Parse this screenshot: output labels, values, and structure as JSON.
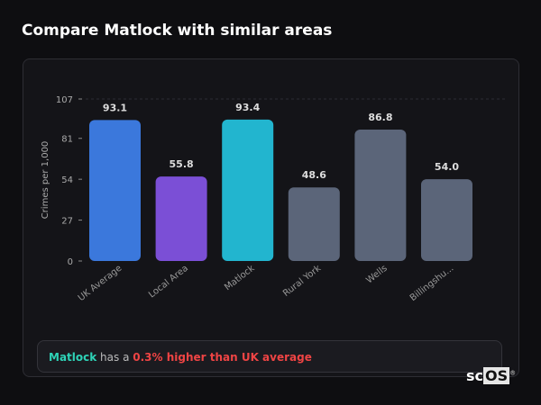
{
  "header": {
    "title": "Compare Matlock with similar areas"
  },
  "chart_data": {
    "type": "bar",
    "categories": [
      "UK Average",
      "Local Area",
      "Matlock",
      "Rural York",
      "Wells",
      "Billingshu..."
    ],
    "values": [
      93.1,
      55.8,
      93.4,
      48.6,
      86.8,
      54.0
    ],
    "data_labels": [
      "93.1",
      "55.8",
      "93.4",
      "48.6",
      "86.8",
      "54.0"
    ],
    "colors": [
      "#3b78dc",
      "#7b4fd6",
      "#22b5cf",
      "#5b6579",
      "#5b6579",
      "#5b6579"
    ],
    "ylabel": "Crimes per 1,000",
    "xlabel": "",
    "ylim": [
      0,
      107
    ],
    "yticks": [
      0,
      27,
      54,
      81,
      107
    ],
    "grid": "top dashed line only"
  },
  "summary": {
    "place": "Matlock",
    "middle": " has a ",
    "highlight": "0.3% higher than UK average"
  },
  "logo": {
    "text_a": "sc",
    "text_b": "OS",
    "mark": "®"
  }
}
